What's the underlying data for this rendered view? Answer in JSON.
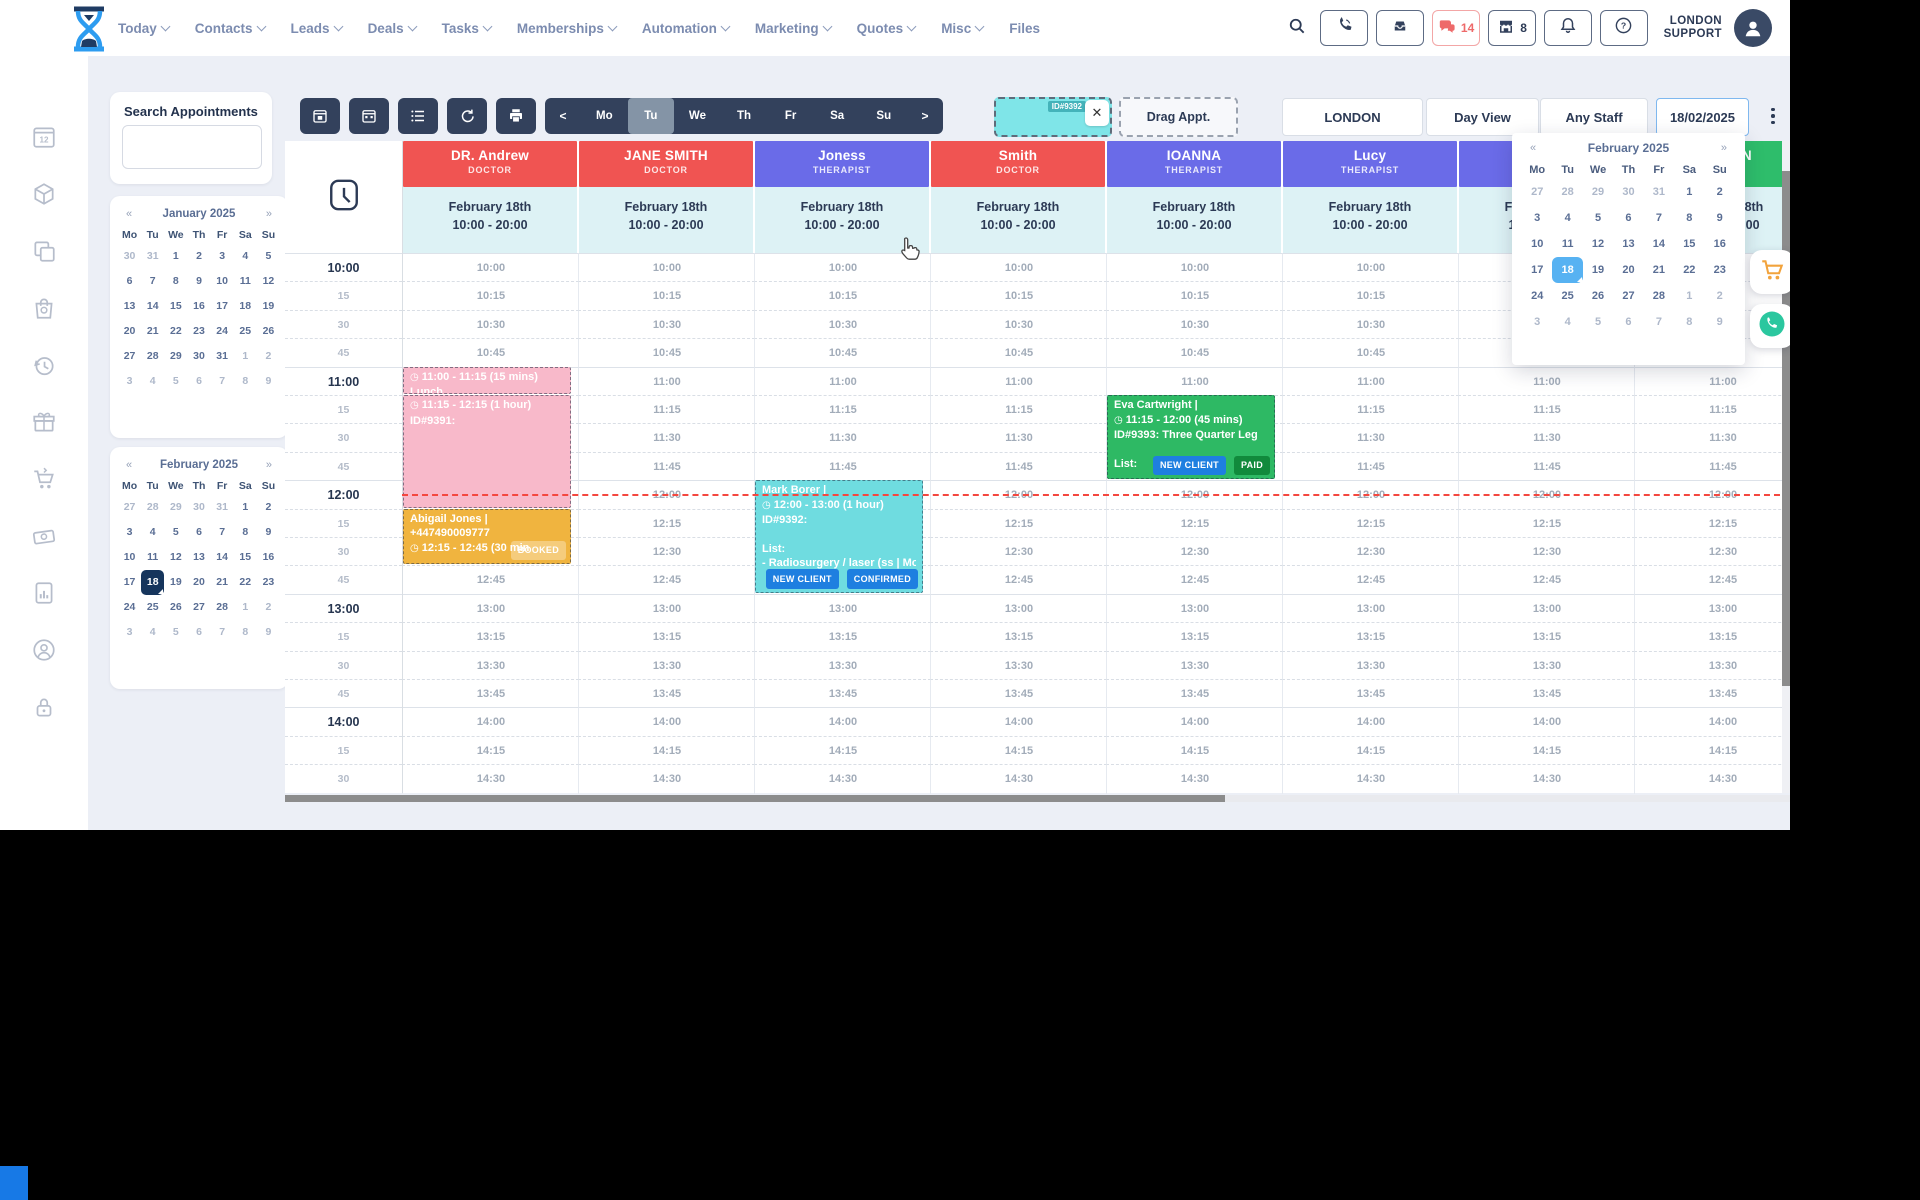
{
  "topnav": {
    "items": [
      {
        "label": "Today",
        "chevron": true
      },
      {
        "label": "Contacts",
        "chevron": true
      },
      {
        "label": "Leads",
        "chevron": true
      },
      {
        "label": "Deals",
        "chevron": true
      },
      {
        "label": "Tasks",
        "chevron": true
      },
      {
        "label": "Memberships",
        "chevron": true
      },
      {
        "label": "Automation",
        "chevron": true
      },
      {
        "label": "Marketing",
        "chevron": true
      },
      {
        "label": "Quotes",
        "chevron": true
      },
      {
        "label": "Misc",
        "chevron": true
      },
      {
        "label": "Files",
        "chevron": false
      }
    ],
    "right": {
      "chat_badge": "14",
      "shop_badge": "8",
      "account_line1": "LONDON",
      "account_line2": "SUPPORT"
    }
  },
  "sidebar": {
    "icons": [
      "calendar-12",
      "package",
      "copy",
      "bag",
      "history",
      "gift",
      "cart",
      "money",
      "report",
      "user-circle",
      "lock"
    ]
  },
  "search_panel": {
    "title": "Search Appointments",
    "input_value": ""
  },
  "mini_calendars": [
    {
      "title": "January 2025",
      "prev": "«",
      "next": "»",
      "weekdays": [
        "Mo",
        "Tu",
        "We",
        "Th",
        "Fr",
        "Sa",
        "Su"
      ],
      "rows": [
        [
          "30",
          "31",
          "1",
          "2",
          "3",
          "4",
          "5"
        ],
        [
          "6",
          "7",
          "8",
          "9",
          "10",
          "11",
          "12"
        ],
        [
          "13",
          "14",
          "15",
          "16",
          "17",
          "18",
          "19"
        ],
        [
          "20",
          "21",
          "22",
          "23",
          "24",
          "25",
          "26"
        ],
        [
          "27",
          "28",
          "29",
          "30",
          "31",
          "1",
          "2"
        ],
        [
          "3",
          "4",
          "5",
          "6",
          "7",
          "8",
          "9"
        ]
      ],
      "muted_indices": [
        0,
        1,
        33,
        34,
        35,
        36,
        37,
        38,
        39,
        40,
        41
      ],
      "selected_index": null
    },
    {
      "title": "February 2025",
      "prev": "«",
      "next": "»",
      "weekdays": [
        "Mo",
        "Tu",
        "We",
        "Th",
        "Fr",
        "Sa",
        "Su"
      ],
      "rows": [
        [
          "27",
          "28",
          "29",
          "30",
          "31",
          "1",
          "2"
        ],
        [
          "3",
          "4",
          "5",
          "6",
          "7",
          "8",
          "9"
        ],
        [
          "10",
          "11",
          "12",
          "13",
          "14",
          "15",
          "16"
        ],
        [
          "17",
          "18",
          "19",
          "20",
          "21",
          "22",
          "23"
        ],
        [
          "24",
          "25",
          "26",
          "27",
          "28",
          "1",
          "2"
        ],
        [
          "3",
          "4",
          "5",
          "6",
          "7",
          "8",
          "9"
        ]
      ],
      "muted_indices": [
        0,
        1,
        2,
        3,
        4,
        33,
        34,
        35,
        36,
        37,
        38,
        39,
        40,
        41
      ],
      "selected_index": 22
    }
  ],
  "datepicker": {
    "title": "February 2025",
    "prev": "«",
    "next": "»",
    "weekdays": [
      "Mo",
      "Tu",
      "We",
      "Th",
      "Fr",
      "Sa",
      "Su"
    ],
    "rows": [
      [
        "27",
        "28",
        "29",
        "30",
        "31",
        "1",
        "2"
      ],
      [
        "3",
        "4",
        "5",
        "6",
        "7",
        "8",
        "9"
      ],
      [
        "10",
        "11",
        "12",
        "13",
        "14",
        "15",
        "16"
      ],
      [
        "17",
        "18",
        "19",
        "20",
        "21",
        "22",
        "23"
      ],
      [
        "24",
        "25",
        "26",
        "27",
        "28",
        "1",
        "2"
      ],
      [
        "3",
        "4",
        "5",
        "6",
        "7",
        "8",
        "9"
      ]
    ],
    "muted_indices": [
      0,
      1,
      2,
      3,
      4,
      33,
      34,
      35,
      36,
      37,
      38,
      39,
      40,
      41
    ],
    "selected_index": 22
  },
  "toolbar": {
    "view_buttons": [
      "calendar-day",
      "calendar-month",
      "agenda",
      "refresh",
      "print"
    ],
    "day_labels": [
      "Mo",
      "Tu",
      "We",
      "Th",
      "Fr",
      "Sa",
      "Su"
    ],
    "active_day": "Tu",
    "prev_arrow": "<",
    "next_arrow": ">",
    "chip_id": "ID#9392",
    "chip_close": "✕",
    "drag_label": "Drag Appt.",
    "location": "LONDON",
    "view": "Day View",
    "staff_filter": "Any Staff",
    "date_value": "18/02/2025"
  },
  "schedule": {
    "staff": [
      {
        "name": "DR. Andrew",
        "role": "DOCTOR",
        "color": "#F05452"
      },
      {
        "name": "JANE SMITH",
        "role": "DOCTOR",
        "color": "#F05452"
      },
      {
        "name": "Joness",
        "role": "THERAPIST",
        "color": "#6A6BE8"
      },
      {
        "name": "Smith",
        "role": "DOCTOR",
        "color": "#F05452"
      },
      {
        "name": "IOANNA",
        "role": "THERAPIST",
        "color": "#6A6BE8"
      },
      {
        "name": "Lucy",
        "role": "THERAPIST",
        "color": "#6A6BE8"
      },
      {
        "name": "",
        "role": "",
        "color": "#6A6BE8"
      },
      {
        "name": "LONDON",
        "role": "",
        "color": "#2EBD6B"
      }
    ],
    "column_date": "February 18th",
    "column_hours": "10:00 - 20:00",
    "gutter_rows": [
      "10:00",
      "15",
      "30",
      "45",
      "11:00",
      "15",
      "30",
      "45",
      "12:00",
      "15",
      "30",
      "45",
      "13:00",
      "15",
      "30",
      "45",
      "14:00",
      "15",
      "30"
    ],
    "slot_times": [
      "10:00",
      "10:15",
      "10:30",
      "10:45",
      "11:00",
      "11:15",
      "11:30",
      "11:45",
      "12:00",
      "12:15",
      "12:30",
      "12:45",
      "13:00",
      "13:15",
      "13:30",
      "13:45",
      "14:00",
      "14:15",
      "14:30"
    ],
    "current_time": "12:07",
    "appointments": [
      {
        "staff_index": 0,
        "start": "11:00",
        "end": "11:15",
        "color": "#F8B9CA",
        "lines": [
          {
            "clock": true,
            "text": "11:00 - 11:15 (15 mins)"
          },
          {
            "text": "Lunch"
          }
        ],
        "badges": []
      },
      {
        "staff_index": 0,
        "start": "11:15",
        "end": "12:15",
        "color": "#F8B9CA",
        "lines": [
          {
            "clock": true,
            "text": "11:15 - 12:15 (1 hour)"
          },
          {
            "text": "ID#9391:"
          }
        ],
        "badges": []
      },
      {
        "staff_index": 0,
        "start": "12:15",
        "end": "12:45",
        "color": "#F0B43F",
        "lines": [
          {
            "text": "Abigail Jones |"
          },
          {
            "text": "+447490009777"
          },
          {
            "clock": true,
            "text": "12:15 - 12:45 (30 min"
          }
        ],
        "badges": [
          {
            "label": "BOOKED",
            "color": "rgba(255,255,255,0.32)"
          }
        ]
      },
      {
        "staff_index": 2,
        "start": "12:00",
        "end": "13:00",
        "color": "#6FDCE0",
        "lines": [
          {
            "text": "Mark Borer |"
          },
          {
            "clock": true,
            "text": "12:00 - 13:00 (1 hour)"
          },
          {
            "text": "ID#9392:"
          },
          {
            "text": "List:",
            "gap": true
          },
          {
            "text": "- Radiosurgery / laser (ss | Mole"
          }
        ],
        "badges": [
          {
            "label": "NEW CLIENT",
            "color": "#1E7FE0"
          },
          {
            "label": "CONFIRMED",
            "color": "#1E7FE0"
          }
        ]
      },
      {
        "staff_index": 4,
        "start": "11:15",
        "end": "12:00",
        "color": "#2EB964",
        "lines": [
          {
            "text": "Eva Cartwright |"
          },
          {
            "clock": true,
            "text": "11:15 - 12:00 (45 mins)"
          },
          {
            "text": "ID#9393: Three Quarter Leg"
          },
          {
            "text": "List:",
            "gap": true
          }
        ],
        "badges": [
          {
            "label": "NEW CLIENT",
            "color": "#1E7FE0"
          },
          {
            "label": "PAID",
            "color": "#118A3C"
          }
        ]
      }
    ]
  }
}
